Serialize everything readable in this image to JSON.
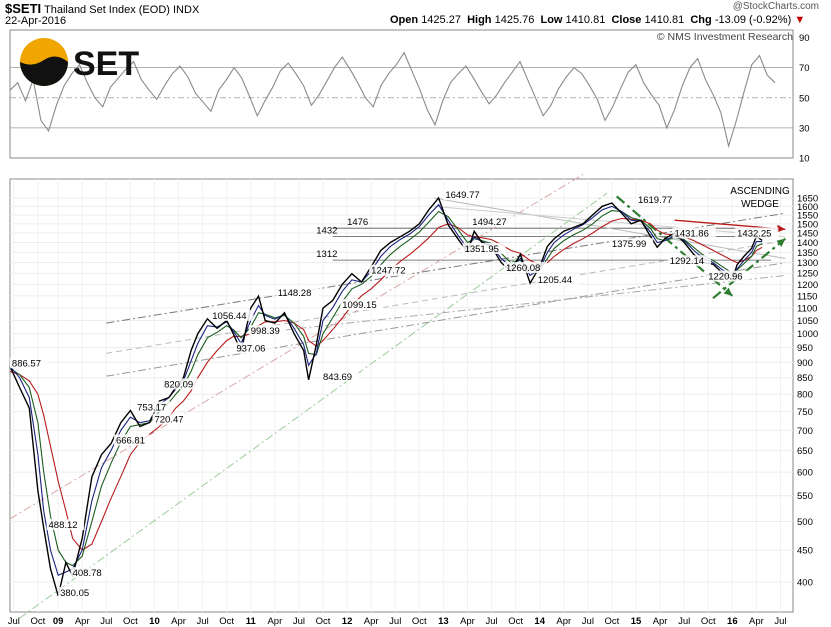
{
  "header": {
    "symbol": "$SETI",
    "name": "Thailand Set Index (EOD)",
    "exchange": "INDX",
    "date": "22-Apr-2016",
    "watermark": "@StockCharts.com",
    "open_label": "Open",
    "open": "1425.27",
    "high_label": "High",
    "high": "1425.76",
    "low_label": "Low",
    "low": "1410.81",
    "close_label": "Close",
    "close": "1410.81",
    "chg_label": "Chg",
    "chg": "-13.09 (-0.92%)",
    "copyright": "© NMS Investment Research"
  },
  "logo": {
    "text": "SET",
    "colors": {
      "top": "#f0a500",
      "bottom": "#111111"
    }
  },
  "colors": {
    "price": "#000000",
    "ma_short": "#1a237e",
    "ma_mid": "#1b5e20",
    "ma_long": "#b71c1c",
    "rsi": "#8a8a8a",
    "arrow_green": "#2e7d32",
    "arrow_red": "#b71c1c"
  },
  "chart_data": [
    {
      "type": "line",
      "title": "RSI",
      "ylim": [
        10,
        95
      ],
      "yticks": [
        "90",
        "70",
        "50",
        "30",
        "10"
      ],
      "ref_lines": [
        70,
        50,
        30
      ],
      "values": [
        55,
        60,
        48,
        62,
        35,
        28,
        45,
        58,
        66,
        72,
        60,
        50,
        44,
        57,
        63,
        69,
        74,
        62,
        55,
        49,
        58,
        66,
        71,
        64,
        53,
        47,
        41,
        55,
        62,
        70,
        63,
        51,
        38,
        48,
        57,
        68,
        73,
        66,
        58,
        45,
        52,
        61,
        70,
        77,
        69,
        60,
        50,
        44,
        58,
        66,
        72,
        80,
        68,
        56,
        42,
        32,
        48,
        60,
        66,
        71,
        63,
        54,
        46,
        52,
        60,
        67,
        74,
        62,
        50,
        38,
        45,
        56,
        64,
        70,
        66,
        58,
        49,
        35,
        44,
        56,
        67,
        72,
        60,
        52,
        45,
        30,
        42,
        58,
        70,
        76,
        62,
        52,
        40,
        18,
        35,
        54,
        72,
        78,
        65,
        60
      ]
    },
    {
      "type": "line",
      "title": "Thailand Set Index (EOD)",
      "log_scale": true,
      "ylim": [
        350,
        1680
      ],
      "yticks": [
        "1650",
        "1600",
        "1550",
        "1500",
        "1450",
        "1400",
        "1350",
        "1300",
        "1250",
        "1200",
        "1150",
        "1100",
        "1050",
        "1000",
        "950",
        "900",
        "850",
        "800",
        "750",
        "700",
        "650",
        "600",
        "550",
        "500",
        "450",
        "400"
      ],
      "xlim": [
        2008.5,
        2016.63
      ],
      "xticks": [
        {
          "x": 2008.54,
          "label": "Jul"
        },
        {
          "x": 2008.79,
          "label": "Oct"
        },
        {
          "x": 2009.0,
          "label": "09"
        },
        {
          "x": 2009.25,
          "label": "Apr"
        },
        {
          "x": 2009.5,
          "label": "Jul"
        },
        {
          "x": 2009.75,
          "label": "Oct"
        },
        {
          "x": 2010.0,
          "label": "10"
        },
        {
          "x": 2010.25,
          "label": "Apr"
        },
        {
          "x": 2010.5,
          "label": "Jul"
        },
        {
          "x": 2010.75,
          "label": "Oct"
        },
        {
          "x": 2011.0,
          "label": "11"
        },
        {
          "x": 2011.25,
          "label": "Apr"
        },
        {
          "x": 2011.5,
          "label": "Jul"
        },
        {
          "x": 2011.75,
          "label": "Oct"
        },
        {
          "x": 2012.0,
          "label": "12"
        },
        {
          "x": 2012.25,
          "label": "Apr"
        },
        {
          "x": 2012.5,
          "label": "Jul"
        },
        {
          "x": 2012.75,
          "label": "Oct"
        },
        {
          "x": 2013.0,
          "label": "13"
        },
        {
          "x": 2013.25,
          "label": "Apr"
        },
        {
          "x": 2013.5,
          "label": "Jul"
        },
        {
          "x": 2013.75,
          "label": "Oct"
        },
        {
          "x": 2014.0,
          "label": "14"
        },
        {
          "x": 2014.25,
          "label": "Apr"
        },
        {
          "x": 2014.5,
          "label": "Jul"
        },
        {
          "x": 2014.75,
          "label": "Oct"
        },
        {
          "x": 2015.0,
          "label": "15"
        },
        {
          "x": 2015.25,
          "label": "Apr"
        },
        {
          "x": 2015.5,
          "label": "Jul"
        },
        {
          "x": 2015.75,
          "label": "Oct"
        },
        {
          "x": 2016.0,
          "label": "16"
        },
        {
          "x": 2016.25,
          "label": "Apr"
        },
        {
          "x": 2016.5,
          "label": "Jul"
        }
      ],
      "series": [
        {
          "x": [
            2008.5,
            2008.6,
            2008.7,
            2008.79,
            2008.85,
            2008.92,
            2009.0,
            2009.08,
            2009.15,
            2009.25,
            2009.35,
            2009.45,
            2009.55,
            2009.65,
            2009.75,
            2009.85,
            2009.95,
            2010.05,
            2010.15,
            2010.22,
            2010.3,
            2010.38,
            2010.45,
            2010.55,
            2010.65,
            2010.75,
            2010.82,
            2010.9,
            2011.0,
            2011.08,
            2011.15,
            2011.25,
            2011.35,
            2011.45,
            2011.55,
            2011.6,
            2011.68,
            2011.75,
            2011.85,
            2011.95,
            2012.05,
            2012.15,
            2012.25,
            2012.35,
            2012.45,
            2012.55,
            2012.65,
            2012.75,
            2012.85,
            2012.95,
            2013.05,
            2013.15,
            2013.25,
            2013.32,
            2013.4,
            2013.5,
            2013.6,
            2013.7,
            2013.8,
            2013.9,
            2014.0,
            2014.08,
            2014.15,
            2014.25,
            2014.35,
            2014.45,
            2014.55,
            2014.65,
            2014.75,
            2014.85,
            2014.95,
            2015.05,
            2015.15,
            2015.22,
            2015.3,
            2015.4,
            2015.5,
            2015.6,
            2015.7,
            2015.8,
            2015.9,
            2016.0,
            2016.05,
            2016.12,
            2016.2,
            2016.25,
            2016.31
          ],
          "values": [
            886.57,
            820,
            760,
            560,
            488.12,
            420,
            380.05,
            430,
            408.78,
            470,
            590,
            640,
            666.81,
            720,
            753.17,
            710,
            720.47,
            780,
            790,
            820.09,
            850,
            940,
            1000,
            1056.44,
            1020,
            1050,
            998.39,
            937.06,
            1100,
            1148.28,
            1050,
            1040,
            1080,
            1000,
            940,
            843.69,
            960,
            1099.15,
            1130,
            1200,
            1247.72,
            1210,
            1280,
            1360,
            1400,
            1430,
            1460,
            1500,
            1580,
            1649.77,
            1494.27,
            1420,
            1351.95,
            1460,
            1400,
            1380,
            1300,
            1260.08,
            1340,
            1205.44,
            1280,
            1380,
            1420,
            1460,
            1480,
            1500,
            1550,
            1600,
            1619.77,
            1560,
            1500,
            1520,
            1431.86,
            1375.99,
            1420,
            1450,
            1400,
            1340,
            1300,
            1292.14,
            1250,
            1220.96,
            1290,
            1330,
            1370,
            1432.25,
            1410.81
          ]
        }
      ],
      "moving_averages": {
        "ma_short": [
          886.57,
          850,
          790,
          640,
          520,
          450,
          410,
          415,
          420,
          450,
          540,
          610,
          650,
          700,
          735,
          720,
          725,
          770,
          790,
          815,
          840,
          905,
          965,
          1030,
          1025,
          1045,
          1010,
          965,
          1050,
          1110,
          1070,
          1055,
          1075,
          1020,
          960,
          890,
          930,
          1050,
          1100,
          1170,
          1220,
          1210,
          1260,
          1330,
          1380,
          1415,
          1445,
          1485,
          1550,
          1610,
          1520,
          1440,
          1370,
          1430,
          1405,
          1385,
          1320,
          1280,
          1320,
          1240,
          1270,
          1350,
          1400,
          1440,
          1470,
          1495,
          1535,
          1580,
          1600,
          1570,
          1520,
          1515,
          1455,
          1400,
          1410,
          1435,
          1410,
          1360,
          1320,
          1300,
          1265,
          1235,
          1270,
          1310,
          1350,
          1405,
          1405
        ],
        "ma_mid": [
          880,
          860,
          820,
          720,
          600,
          510,
          450,
          430,
          425,
          440,
          500,
          570,
          620,
          670,
          710,
          715,
          720,
          750,
          775,
          800,
          825,
          870,
          925,
          985,
          1005,
          1030,
          1015,
          985,
          1025,
          1080,
          1075,
          1060,
          1070,
          1040,
          990,
          930,
          925,
          1000,
          1060,
          1125,
          1180,
          1200,
          1235,
          1290,
          1340,
          1380,
          1415,
          1455,
          1510,
          1570,
          1540,
          1470,
          1400,
          1420,
          1410,
          1395,
          1345,
          1300,
          1310,
          1265,
          1265,
          1320,
          1370,
          1410,
          1440,
          1465,
          1500,
          1545,
          1575,
          1570,
          1535,
          1520,
          1475,
          1420,
          1410,
          1425,
          1415,
          1375,
          1335,
          1310,
          1280,
          1250,
          1265,
          1295,
          1330,
          1380,
          1395
        ],
        "ma_long": [
          870,
          860,
          840,
          800,
          740,
          660,
          580,
          520,
          470,
          450,
          460,
          500,
          545,
          590,
          640,
          670,
          690,
          710,
          735,
          760,
          780,
          810,
          850,
          900,
          940,
          975,
          990,
          990,
          1000,
          1030,
          1045,
          1045,
          1050,
          1040,
          1015,
          975,
          955,
          975,
          1015,
          1060,
          1110,
          1150,
          1180,
          1220,
          1265,
          1305,
          1340,
          1380,
          1425,
          1480,
          1500,
          1480,
          1440,
          1430,
          1425,
          1415,
          1390,
          1360,
          1345,
          1310,
          1290,
          1300,
          1330,
          1365,
          1395,
          1420,
          1450,
          1485,
          1515,
          1530,
          1525,
          1520,
          1500,
          1465,
          1445,
          1440,
          1430,
          1410,
          1385,
          1360,
          1335,
          1310,
          1300,
          1310,
          1330,
          1360,
          1375
        ]
      },
      "annotations": [
        {
          "x": 2008.52,
          "y": 886.57,
          "text": "886.57"
        },
        {
          "x": 2008.9,
          "y": 488.12,
          "text": "488.12"
        },
        {
          "x": 2009.02,
          "y": 380.05,
          "text": "380.05"
        },
        {
          "x": 2009.15,
          "y": 408.78,
          "text": "408.78"
        },
        {
          "x": 2009.6,
          "y": 666.81,
          "text": "666.81"
        },
        {
          "x": 2009.82,
          "y": 753.17,
          "text": "753.17"
        },
        {
          "x": 2010.0,
          "y": 720.47,
          "text": "720.47"
        },
        {
          "x": 2010.1,
          "y": 820.09,
          "text": "820.09"
        },
        {
          "x": 2010.6,
          "y": 1056.44,
          "text": "1056.44"
        },
        {
          "x": 2010.85,
          "y": 937.06,
          "text": "937.06"
        },
        {
          "x": 2011.0,
          "y": 998.39,
          "text": "998.39"
        },
        {
          "x": 2011.28,
          "y": 1148.28,
          "text": "1148.28"
        },
        {
          "x": 2011.75,
          "y": 843.69,
          "text": "843.69"
        },
        {
          "x": 2011.95,
          "y": 1099.15,
          "text": "1099.15"
        },
        {
          "x": 2012.25,
          "y": 1247.72,
          "text": "1247.72"
        },
        {
          "x": 2013.02,
          "y": 1649.77,
          "text": "1649.77"
        },
        {
          "x": 2013.3,
          "y": 1494.27,
          "text": "1494.27"
        },
        {
          "x": 2013.22,
          "y": 1351.95,
          "text": "1351.95"
        },
        {
          "x": 2013.65,
          "y": 1260.08,
          "text": "1260.08"
        },
        {
          "x": 2013.98,
          "y": 1205.44,
          "text": "1205.44"
        },
        {
          "x": 2014.75,
          "y": 1375.99,
          "text": "1375.99"
        },
        {
          "x": 2015.02,
          "y": 1619.77,
          "text": "1619.77"
        },
        {
          "x": 2015.4,
          "y": 1431.86,
          "text": "1431.86"
        },
        {
          "x": 2015.35,
          "y": 1292.14,
          "text": "1292.14"
        },
        {
          "x": 2015.75,
          "y": 1220.96,
          "text": "1220.96"
        },
        {
          "x": 2016.05,
          "y": 1432.25,
          "text": "1432.25"
        },
        {
          "x": 2012.0,
          "y": 1476,
          "text": "1476"
        },
        {
          "x": 2011.68,
          "y": 1432,
          "text": "1432"
        },
        {
          "x": 2011.68,
          "y": 1312,
          "text": "1312"
        }
      ],
      "pattern_label": [
        "ASCENDING",
        "WEDGE"
      ],
      "horizontal_levels": [
        1476,
        1432,
        1312
      ],
      "trendlines": [
        {
          "x1": 2008.5,
          "y1": 505,
          "x2": 2014.45,
          "y2": 1800,
          "style": "dashdot",
          "color": "#d8a8a8"
        },
        {
          "x1": 2008.6,
          "y1": 350,
          "x2": 2014.7,
          "y2": 1680,
          "style": "dashdot",
          "color": "#9ccc9c"
        },
        {
          "x1": 2009.5,
          "y1": 1040,
          "x2": 2016.55,
          "y2": 1560,
          "style": "dashdot",
          "color": "#777777"
        },
        {
          "x1": 2009.5,
          "y1": 855,
          "x2": 2016.55,
          "y2": 1300,
          "style": "dashdot",
          "color": "#999999"
        },
        {
          "x1": 2009.5,
          "y1": 930,
          "x2": 2016.55,
          "y2": 1410,
          "style": "dash",
          "color": "#bbbbbb"
        },
        {
          "x1": 2011.0,
          "y1": 1000,
          "x2": 2016.55,
          "y2": 1240,
          "style": "dashdot",
          "color": "#aaaaaa"
        },
        {
          "x1": 2012.9,
          "y1": 1650,
          "x2": 2016.55,
          "y2": 1320,
          "style": "solid",
          "color": "#bbbbbb"
        },
        {
          "x1": 2012.9,
          "y1": 1600,
          "x2": 2016.55,
          "y2": 1430,
          "style": "solid",
          "color": "#cccccc"
        },
        {
          "x1": 2014.8,
          "y1": 1660,
          "x2": 2016.0,
          "y2": 1150,
          "style": "dashdot-bold",
          "color": "#2e7d32"
        },
        {
          "x1": 2015.8,
          "y1": 1140,
          "x2": 2016.55,
          "y2": 1420,
          "style": "dashdot-bold",
          "color": "#2e7d32"
        }
      ]
    }
  ]
}
